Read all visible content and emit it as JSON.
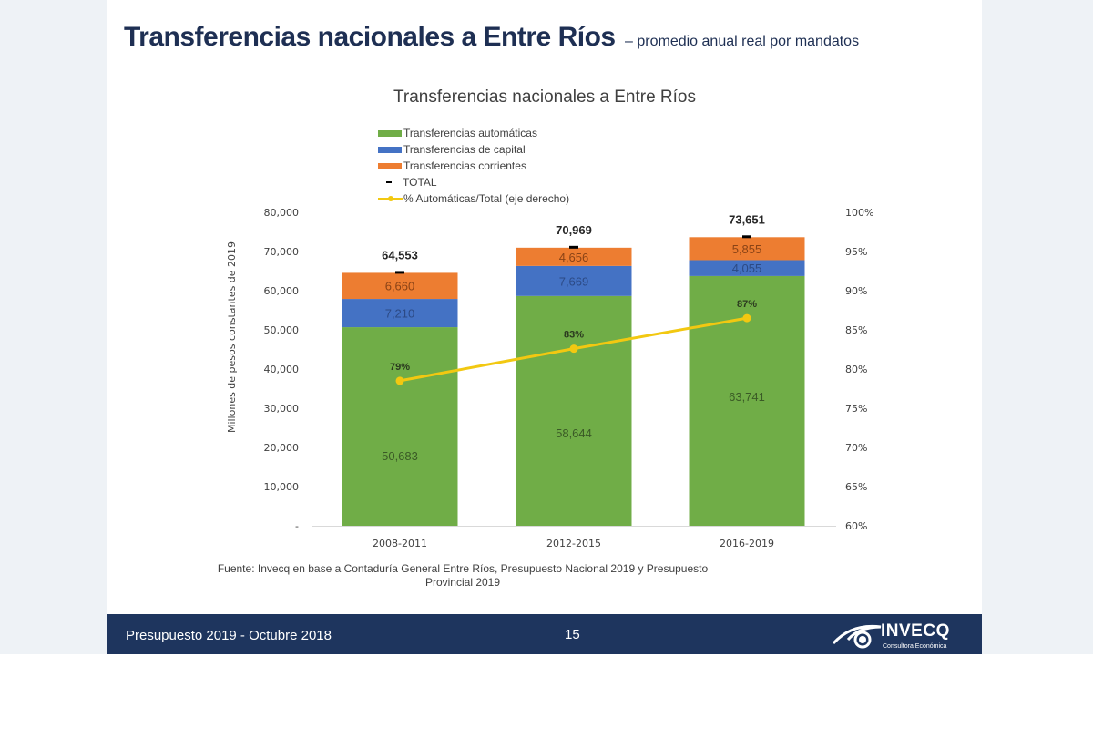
{
  "slide": {
    "title": "Transferencias nacionales a Entre Ríos",
    "subtitle": "– promedio anual real por mandatos",
    "source": "Fuente: Invecq en base a Contaduría General Entre Ríos, Presupuesto Nacional 2019 y Presupuesto Provincial 2019",
    "footer_left": "Presupuesto 2019 - Octubre 2018",
    "page_number": "15",
    "logo_name": "INVECQ",
    "logo_tagline": "Consultora Económica"
  },
  "colors": {
    "automaticas": "#70ad47",
    "capital": "#4472c4",
    "corrientes": "#ed7d31",
    "line": "#f2c811",
    "title": "#1e2f53",
    "footer_bg": "#1e355e"
  },
  "chart_data": {
    "type": "bar",
    "stacked": true,
    "title": "Transferencias nacionales a Entre Ríos",
    "xlabel": "",
    "ylabel": "Millones de pesos constantes de 2019",
    "ylim": [
      0,
      80000
    ],
    "yticks": [
      "-",
      "10,000",
      "20,000",
      "30,000",
      "40,000",
      "50,000",
      "60,000",
      "70,000",
      "80,000"
    ],
    "y2lim": [
      60,
      100
    ],
    "y2ticks": [
      "60%",
      "65%",
      "70%",
      "75%",
      "80%",
      "85%",
      "90%",
      "95%",
      "100%"
    ],
    "grid": false,
    "legend_position": "top",
    "categories": [
      "2008-2011",
      "2012-2015",
      "2016-2019"
    ],
    "series": [
      {
        "name": "Transferencias automáticas",
        "values": [
          50683,
          58644,
          63741
        ],
        "labels": [
          "50,683",
          "58,644",
          "63,741"
        ]
      },
      {
        "name": "Transferencias de capital",
        "values": [
          7210,
          7669,
          4055
        ],
        "labels": [
          "7,210",
          "7,669",
          "4,055"
        ]
      },
      {
        "name": "Transferencias corrientes",
        "values": [
          6660,
          4656,
          5855
        ],
        "labels": [
          "6,660",
          "4,656",
          "5,855"
        ]
      }
    ],
    "total": {
      "name": "TOTAL",
      "values": [
        64553,
        70969,
        73651
      ],
      "labels": [
        "64,553",
        "70,969",
        "73,651"
      ]
    },
    "line": {
      "name": "% Automáticas/Total (eje derecho)",
      "axis": "right",
      "values": [
        78.5,
        82.6,
        86.5
      ],
      "labels": [
        "79%",
        "83%",
        "87%"
      ]
    }
  }
}
